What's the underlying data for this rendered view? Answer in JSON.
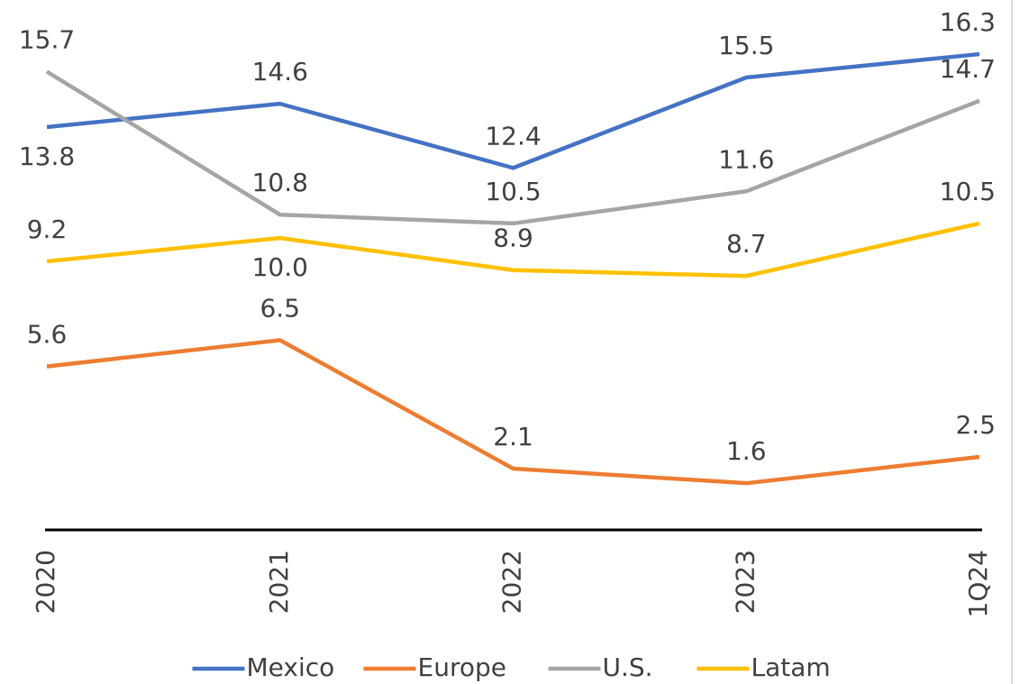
{
  "chart_data": {
    "type": "line",
    "categories": [
      "2020",
      "2021",
      "2022",
      "2023",
      "1Q24"
    ],
    "ylim": [
      0,
      18
    ],
    "legend": "bottom",
    "series": [
      {
        "name": "Mexico",
        "color": "#4472c4",
        "values": [
          13.8,
          14.6,
          12.4,
          15.5,
          16.3
        ],
        "value_labels": [
          "13.8",
          "14.6",
          "12.4",
          "15.5",
          "16.3"
        ]
      },
      {
        "name": "Europe",
        "color": "#ed7d31",
        "values": [
          5.6,
          6.5,
          2.1,
          1.6,
          2.5
        ],
        "value_labels": [
          "5.6",
          "6.5",
          "2.1",
          "1.6",
          "2.5"
        ]
      },
      {
        "name": "U.S.",
        "color": "#a5a5a5",
        "values": [
          15.7,
          10.8,
          10.5,
          11.6,
          14.7
        ],
        "value_labels": [
          "15.7",
          "10.8",
          "10.5",
          "11.6",
          "14.7"
        ]
      },
      {
        "name": "Latam",
        "color": "#ffc000",
        "values": [
          9.2,
          10.0,
          8.9,
          8.7,
          10.5
        ],
        "value_labels": [
          "9.2",
          "10.0",
          "8.9",
          "8.7",
          "10.5"
        ]
      }
    ]
  }
}
